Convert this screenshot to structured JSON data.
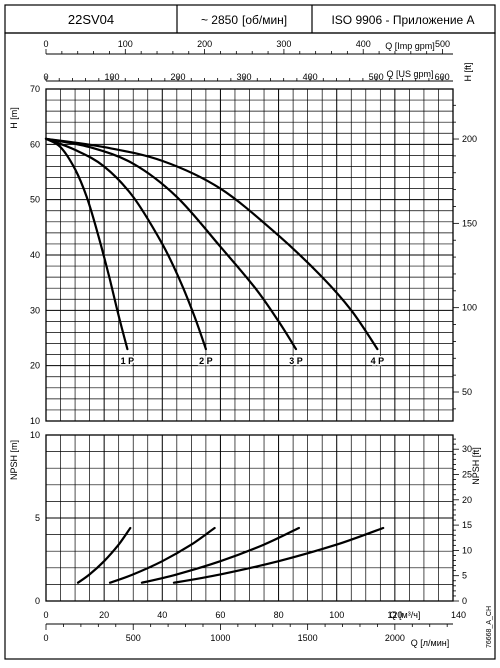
{
  "header": {
    "model": "22SV04",
    "speed": "~ 2850",
    "speed_unit": "[об/мин]",
    "standard": "ISO 9906 - Приложение A"
  },
  "chart_data": [
    {
      "type": "line",
      "name": "head-curves",
      "ylabel_left": "H [m]",
      "ylabel_right": "H [ft]",
      "ylim": [
        10,
        70
      ],
      "y_ticks": [
        10,
        20,
        30,
        40,
        50,
        60,
        70
      ],
      "right_ticks": [
        50,
        100,
        150,
        200
      ],
      "top_axis_imp": {
        "label": "Q [Imp gpm]",
        "ticks": [
          0,
          100,
          200,
          300,
          400,
          500
        ]
      },
      "top_axis_us": {
        "label": "Q [US gpm]",
        "ticks": [
          0,
          100,
          200,
          300,
          400,
          500,
          600
        ]
      },
      "xlim": [
        0,
        140
      ],
      "grid": true,
      "series": [
        {
          "name": "1 P",
          "x": [
            0,
            5,
            10,
            14,
            18,
            22,
            25,
            28
          ],
          "y": [
            61,
            59.5,
            55.5,
            50.5,
            43.5,
            35.5,
            29,
            23
          ]
        },
        {
          "name": "2 P",
          "x": [
            0,
            10,
            20,
            30,
            40,
            46,
            51,
            55
          ],
          "y": [
            61,
            59,
            56,
            50.5,
            42,
            35.5,
            29,
            23
          ]
        },
        {
          "name": "3 P",
          "x": [
            0,
            15,
            30,
            45,
            60,
            72,
            80,
            86
          ],
          "y": [
            61,
            59.5,
            56.5,
            50.5,
            41.5,
            34,
            28,
            23
          ]
        },
        {
          "name": "4 P",
          "x": [
            0,
            20,
            40,
            60,
            80,
            95,
            105,
            114
          ],
          "y": [
            61,
            59.5,
            57,
            52,
            43.5,
            36,
            30,
            23
          ]
        }
      ]
    },
    {
      "type": "line",
      "name": "npsh-curves",
      "ylabel_left": "NPSH [m]",
      "ylabel_right": "NPSH [ft]",
      "ylim": [
        0,
        10
      ],
      "y_ticks": [
        0,
        5,
        10
      ],
      "right_ticks": [
        0,
        5,
        10,
        15,
        20,
        25,
        30
      ],
      "x_ticks": [
        0,
        20,
        40,
        60,
        80,
        100,
        120,
        140
      ],
      "xlabel": "Q [м³/ч]",
      "bottom_axis_l": {
        "label": "Q [л/мин]",
        "ticks": [
          0,
          500,
          1000,
          1500,
          2000
        ]
      },
      "xlim": [
        0,
        140
      ],
      "grid": true,
      "series": [
        {
          "name": "1 P",
          "x": [
            11,
            15,
            20,
            25,
            29
          ],
          "y": [
            1.1,
            1.6,
            2.4,
            3.4,
            4.4
          ]
        },
        {
          "name": "2 P",
          "x": [
            22,
            30,
            40,
            50,
            58
          ],
          "y": [
            1.1,
            1.6,
            2.4,
            3.4,
            4.4
          ]
        },
        {
          "name": "3 P",
          "x": [
            33,
            45,
            60,
            75,
            87
          ],
          "y": [
            1.1,
            1.6,
            2.4,
            3.4,
            4.4
          ]
        },
        {
          "name": "4 P",
          "x": [
            44,
            60,
            80,
            100,
            116
          ],
          "y": [
            1.1,
            1.6,
            2.4,
            3.4,
            4.4
          ]
        }
      ]
    }
  ],
  "footnote": "76668_A_CH"
}
